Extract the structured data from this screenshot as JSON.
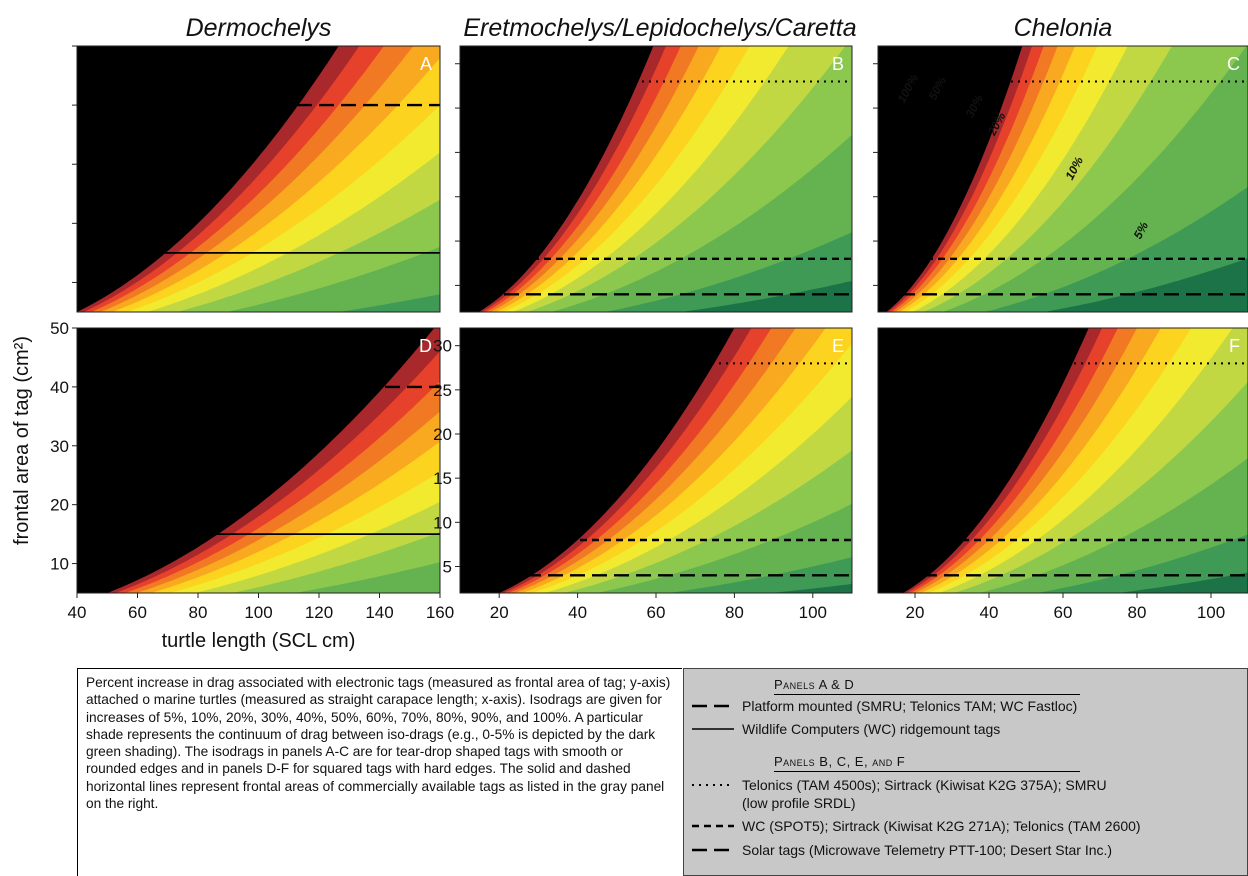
{
  "chart_data": [
    {
      "panel": "A",
      "type": "contour",
      "title": "Dermochelys",
      "x_range": [
        40,
        160
      ],
      "y_range": [
        5,
        50
      ],
      "isodrag_levels_percent": [
        5,
        10,
        20,
        30,
        40,
        50,
        60,
        70,
        80,
        90,
        100
      ],
      "tag_lines": [
        {
          "y": 40,
          "style": "long-dash"
        },
        {
          "y": 15,
          "style": "solid"
        }
      ],
      "contour_labels": []
    },
    {
      "panel": "B",
      "type": "contour",
      "title": "Eretmochelys/Lepidochelys/Caretta",
      "x_range": [
        10,
        110
      ],
      "y_range": [
        2,
        32
      ],
      "isodrag_levels_percent": [
        5,
        10,
        20,
        30,
        40,
        50,
        60,
        70,
        80,
        90,
        100
      ],
      "tag_lines": [
        {
          "y": 28,
          "style": "dotted"
        },
        {
          "y": 8,
          "style": "short-dash"
        },
        {
          "y": 4,
          "style": "long-dash"
        }
      ],
      "contour_labels": []
    },
    {
      "panel": "C",
      "type": "contour",
      "title": "Chelonia",
      "x_range": [
        10,
        110
      ],
      "y_range": [
        2,
        32
      ],
      "isodrag_levels_percent": [
        5,
        10,
        20,
        30,
        40,
        50,
        60,
        70,
        80,
        90,
        100
      ],
      "tag_lines": [
        {
          "y": 28,
          "style": "dotted"
        },
        {
          "y": 8,
          "style": "short-dash"
        },
        {
          "y": 4,
          "style": "long-dash"
        }
      ],
      "contour_labels": [
        {
          "text": "100%",
          "x": 19,
          "y": 27
        },
        {
          "text": "50%",
          "x": 27,
          "y": 27
        },
        {
          "text": "30%",
          "x": 37,
          "y": 25
        },
        {
          "text": "20%",
          "x": 43,
          "y": 23
        },
        {
          "text": "10%",
          "x": 64,
          "y": 18
        },
        {
          "text": "5%",
          "x": 82,
          "y": 11
        }
      ]
    },
    {
      "panel": "D",
      "type": "contour",
      "x_range": [
        40,
        160
      ],
      "y_range": [
        5,
        50
      ],
      "xlabel": "turtle length (SCL cm)",
      "ylabel": "frontal area of tag (cm²)",
      "xticks": [
        40,
        60,
        80,
        100,
        120,
        140,
        160
      ],
      "yticks": [
        10,
        20,
        30,
        40,
        50
      ],
      "isodrag_levels_percent": [
        5,
        10,
        20,
        30,
        40,
        50,
        60,
        70,
        80,
        90,
        100
      ],
      "tag_lines": [
        {
          "y": 40,
          "style": "long-dash"
        },
        {
          "y": 15,
          "style": "solid"
        }
      ],
      "contour_labels": []
    },
    {
      "panel": "E",
      "type": "contour",
      "x_range": [
        10,
        110
      ],
      "y_range": [
        2,
        32
      ],
      "xticks": [
        20,
        40,
        60,
        80,
        100
      ],
      "yticks": [
        5,
        10,
        15,
        20,
        25,
        30
      ],
      "isodrag_levels_percent": [
        5,
        10,
        20,
        30,
        40,
        50,
        60,
        70,
        80,
        90,
        100
      ],
      "tag_lines": [
        {
          "y": 28,
          "style": "dotted"
        },
        {
          "y": 8,
          "style": "short-dash"
        },
        {
          "y": 4,
          "style": "long-dash"
        }
      ],
      "contour_labels": []
    },
    {
      "panel": "F",
      "type": "contour",
      "x_range": [
        10,
        110
      ],
      "y_range": [
        2,
        32
      ],
      "xticks": [
        20,
        40,
        60,
        80,
        100
      ],
      "isodrag_levels_percent": [
        5,
        10,
        20,
        30,
        40,
        50,
        60,
        70,
        80,
        90,
        100
      ],
      "tag_lines": [
        {
          "y": 28,
          "style": "dotted"
        },
        {
          "y": 8,
          "style": "short-dash"
        },
        {
          "y": 4,
          "style": "long-dash"
        }
      ],
      "contour_labels": []
    }
  ],
  "colors": {
    "band_fills": [
      "#1b7347",
      "#3f9a55",
      "#65b350",
      "#8cc84e",
      "#c2d843",
      "#f1ea2f",
      "#fcd31e",
      "#f9a91f",
      "#f27924",
      "#e5412b",
      "#a8282c"
    ]
  },
  "column_titles": [
    "Dermochelys",
    "Eretmochelys/Lepidochelys/Caretta",
    "Chelonia"
  ],
  "caption": "Percent increase in drag associated with electronic tags (measured as frontal area of tag; y-axis) attached o marine turtles (measured as straight carapace length; x-axis). Isodrags are given for increases of 5%, 10%, 20%, 30%, 40%, 50%, 60%, 70%, 80%, 90%, and 100%. A particular shade represents the continuum of drag between iso-drags (e.g., 0-5% is depicted by the dark green shading). The isodrags in panels A-C are for tear-drop shaped tags with smooth or rounded edges and in panels D-F for squared tags with hard edges. The solid and dashed horizontal lines represent frontal areas of commercially available tags as listed in the gray panel on the right.",
  "legend": {
    "head_ad": "Panels A & D",
    "items_ad": [
      {
        "style": "long-dash",
        "text": "Platform mounted (SMRU; Telonics TAM; WC Fastloc)"
      },
      {
        "style": "solid",
        "text": "Wildlife Computers (WC) ridgemount tags"
      }
    ],
    "head_bcef": "Panels B, C, E, and F",
    "items_bcef": [
      {
        "style": "dotted",
        "text": "Telonics (TAM 4500s); Sirtrack (Kiwisat K2G 375A); SMRU (low profile SRDL)"
      },
      {
        "style": "short-dash",
        "text": "WC (SPOT5); Sirtrack (Kiwisat K2G 271A); Telonics (TAM 2600)"
      },
      {
        "style": "long-dash",
        "text": "Solar tags (Microwave Telemetry PTT-100; Desert Star Inc.)"
      }
    ]
  }
}
